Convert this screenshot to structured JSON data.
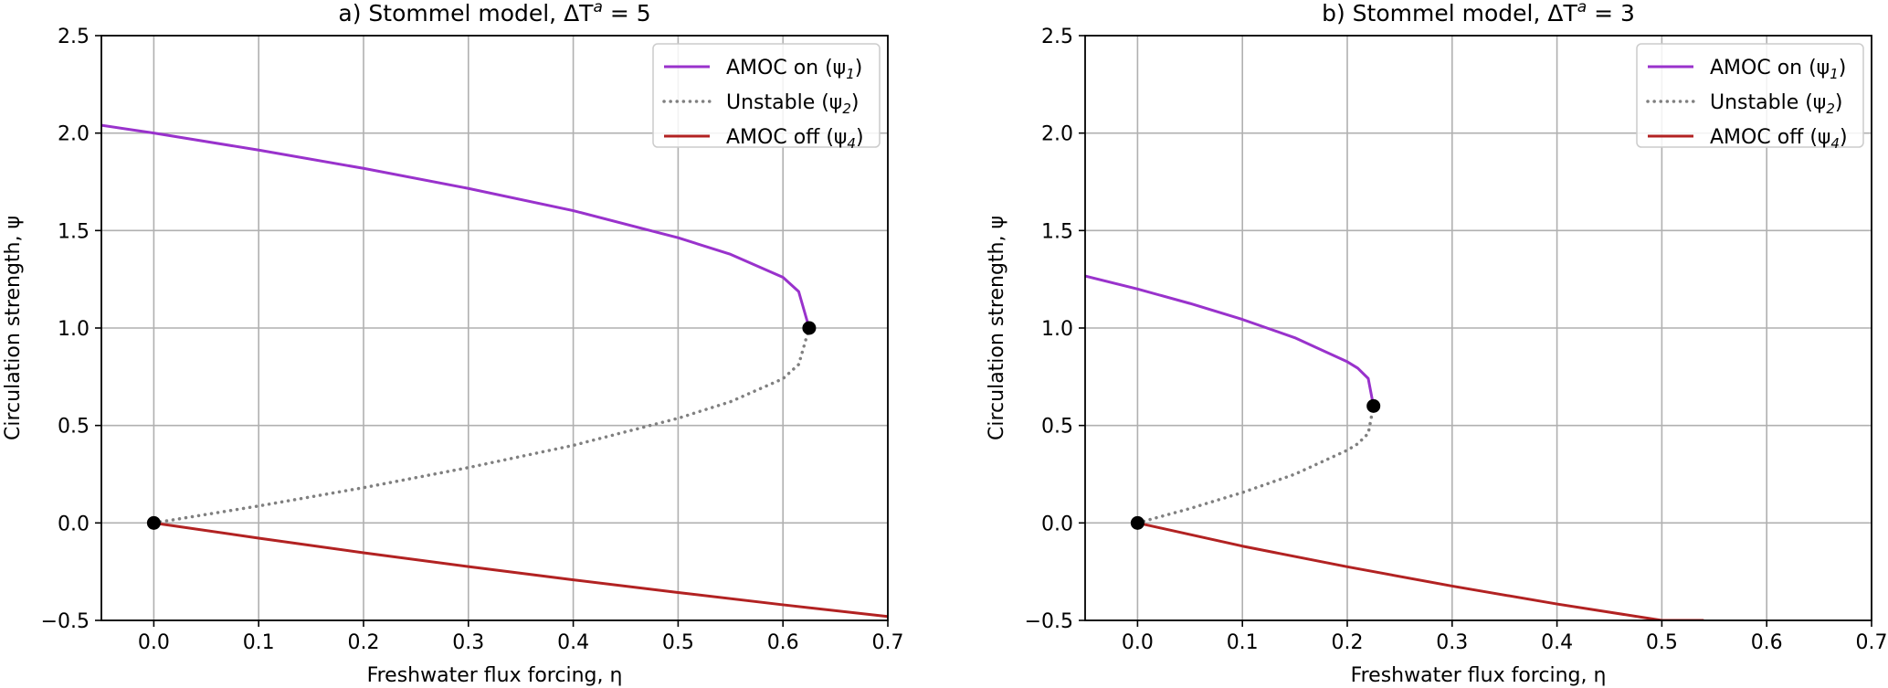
{
  "chart_data": [
    {
      "type": "line",
      "title": "a) Stommel model, ΔT",
      "title_super": "a",
      "title_suffix": " = 5",
      "xlabel": "Freshwater flux forcing, η",
      "ylabel": "Circulation strength, ψ",
      "xlim": [
        -0.05,
        0.7
      ],
      "ylim": [
        -0.5,
        2.5
      ],
      "xticks": [
        0.0,
        0.1,
        0.2,
        0.3,
        0.4,
        0.5,
        0.6,
        0.7
      ],
      "xtick_labels": [
        "0.0",
        "0.1",
        "0.2",
        "0.3",
        "0.4",
        "0.5",
        "0.6",
        "0.7"
      ],
      "yticks": [
        -0.5,
        0.0,
        0.5,
        1.0,
        1.5,
        2.0,
        2.5
      ],
      "ytick_labels": [
        "−0.5",
        "0.0",
        "0.5",
        "1.0",
        "1.5",
        "2.0",
        "2.5"
      ],
      "grid": true,
      "legend_position": "top-right",
      "delta_T": 5,
      "series": [
        {
          "name": "AMOC on (ψ",
          "sub": "1",
          "color": "#9932CC",
          "style": "solid",
          "x": [
            -0.05,
            0.0,
            0.1,
            0.2,
            0.3,
            0.4,
            0.5,
            0.55,
            0.6,
            0.615,
            0.625
          ],
          "y": [
            2.04,
            2.0,
            1.913,
            1.819,
            1.716,
            1.602,
            1.463,
            1.378,
            1.26,
            1.187,
            1.0
          ]
        },
        {
          "name": "Unstable (ψ",
          "sub": "2",
          "color": "#808080",
          "style": "dotted",
          "x": [
            0.0,
            0.1,
            0.2,
            0.3,
            0.4,
            0.5,
            0.55,
            0.6,
            0.615,
            0.625
          ],
          "y": [
            0.0,
            0.087,
            0.181,
            0.284,
            0.398,
            0.537,
            0.622,
            0.74,
            0.813,
            1.0
          ]
        },
        {
          "name": "AMOC off (ψ",
          "sub": "4",
          "color": "#B22222",
          "style": "solid",
          "x": [
            0.0,
            0.1,
            0.2,
            0.3,
            0.4,
            0.5,
            0.6,
            0.7
          ],
          "y": [
            0.0,
            -0.078,
            -0.153,
            -0.224,
            -0.292,
            -0.357,
            -0.42,
            -0.48
          ]
        }
      ],
      "markers": [
        {
          "x": 0.0,
          "y": 0.0
        },
        {
          "x": 0.625,
          "y": 1.0
        }
      ]
    },
    {
      "type": "line",
      "title": "b) Stommel model, ΔT",
      "title_super": "a",
      "title_suffix": " = 3",
      "xlabel": "Freshwater flux forcing, η",
      "ylabel": "Circulation strength, ψ",
      "xlim": [
        -0.05,
        0.7
      ],
      "ylim": [
        -0.5,
        2.5
      ],
      "xticks": [
        0.0,
        0.1,
        0.2,
        0.3,
        0.4,
        0.5,
        0.6,
        0.7
      ],
      "xtick_labels": [
        "0.0",
        "0.1",
        "0.2",
        "0.3",
        "0.4",
        "0.5",
        "0.6",
        "0.7"
      ],
      "yticks": [
        -0.5,
        0.0,
        0.5,
        1.0,
        1.5,
        2.0,
        2.5
      ],
      "ytick_labels": [
        "−0.5",
        "0.0",
        "0.5",
        "1.0",
        "1.5",
        "2.0",
        "2.5"
      ],
      "grid": true,
      "legend_position": "top-right",
      "delta_T": 3,
      "series": [
        {
          "name": "AMOC on (ψ",
          "sub": "1",
          "color": "#9932CC",
          "style": "solid",
          "x": [
            -0.05,
            0.0,
            0.05,
            0.1,
            0.15,
            0.2,
            0.21,
            0.22,
            0.225
          ],
          "y": [
            1.267,
            1.2,
            1.126,
            1.044,
            0.95,
            0.827,
            0.794,
            0.741,
            0.6
          ]
        },
        {
          "name": "Unstable (ψ",
          "sub": "2",
          "color": "#808080",
          "style": "dotted",
          "x": [
            0.0,
            0.05,
            0.1,
            0.15,
            0.2,
            0.21,
            0.22,
            0.225
          ],
          "y": [
            0.0,
            0.074,
            0.156,
            0.25,
            0.373,
            0.406,
            0.459,
            0.6
          ]
        },
        {
          "name": "AMOC off (ψ",
          "sub": "4",
          "color": "#B22222",
          "style": "solid",
          "x": [
            0.0,
            0.1,
            0.2,
            0.3,
            0.4,
            0.5,
            0.54
          ],
          "y": [
            0.0,
            -0.119,
            -0.225,
            -0.324,
            -0.416,
            -0.5,
            -0.5
          ]
        }
      ],
      "markers": [
        {
          "x": 0.0,
          "y": 0.0
        },
        {
          "x": 0.225,
          "y": 0.6
        }
      ]
    }
  ]
}
